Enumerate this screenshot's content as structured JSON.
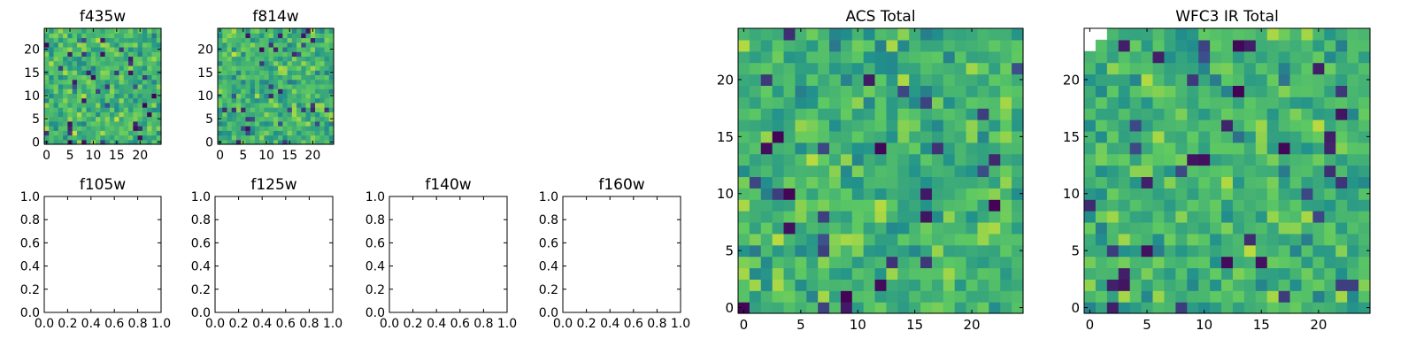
{
  "figure": {
    "colormap": [
      "#440154",
      "#3b528b",
      "#21918c",
      "#5ec962",
      "#fde725"
    ],
    "tick_color": "#000000",
    "nan_color": "#ffffff"
  },
  "chart_data": [
    {
      "type": "heatmap",
      "title": "f435w",
      "grid_size": 25,
      "value_range": [
        0,
        1
      ],
      "xlim": [
        -0.5,
        24.5
      ],
      "ylim": [
        -0.5,
        24.5
      ],
      "x_ticks": [
        0,
        5,
        10,
        15,
        20
      ],
      "y_ticks": [
        0,
        5,
        10,
        15,
        20
      ],
      "noise_seed": 11,
      "xlabel": "",
      "ylabel": ""
    },
    {
      "type": "heatmap",
      "title": "f814w",
      "grid_size": 25,
      "value_range": [
        0,
        1
      ],
      "xlim": [
        -0.5,
        24.5
      ],
      "ylim": [
        -0.5,
        24.5
      ],
      "x_ticks": [
        0,
        5,
        10,
        15,
        20
      ],
      "y_ticks": [
        0,
        5,
        10,
        15,
        20
      ],
      "noise_seed": 23,
      "xlabel": "",
      "ylabel": ""
    },
    {
      "type": "heatmap",
      "title": "f105w",
      "empty": true,
      "xlim": [
        0,
        1
      ],
      "ylim": [
        0,
        1
      ],
      "x_ticks": [
        0.0,
        0.2,
        0.4,
        0.6,
        0.8,
        1.0
      ],
      "x_tick_labels": [
        "0.0",
        "0.2",
        "0.4",
        "0.6",
        "0.8",
        "1.0"
      ],
      "y_ticks": [
        0.0,
        0.2,
        0.4,
        0.6,
        0.8,
        1.0
      ],
      "y_tick_labels": [
        "0.0",
        "0.2",
        "0.4",
        "0.6",
        "0.8",
        "1.0"
      ],
      "xlabel": "",
      "ylabel": ""
    },
    {
      "type": "heatmap",
      "title": "f125w",
      "empty": true,
      "xlim": [
        0,
        1
      ],
      "ylim": [
        0,
        1
      ],
      "x_ticks": [
        0.0,
        0.2,
        0.4,
        0.6,
        0.8,
        1.0
      ],
      "x_tick_labels": [
        "0.0",
        "0.2",
        "0.4",
        "0.6",
        "0.8",
        "1.0"
      ],
      "y_ticks": [
        0.0,
        0.2,
        0.4,
        0.6,
        0.8,
        1.0
      ],
      "y_tick_labels": [
        "0.0",
        "0.2",
        "0.4",
        "0.6",
        "0.8",
        "1.0"
      ],
      "xlabel": "",
      "ylabel": ""
    },
    {
      "type": "heatmap",
      "title": "f140w",
      "empty": true,
      "xlim": [
        0,
        1
      ],
      "ylim": [
        0,
        1
      ],
      "x_ticks": [
        0.0,
        0.2,
        0.4,
        0.6,
        0.8,
        1.0
      ],
      "x_tick_labels": [
        "0.0",
        "0.2",
        "0.4",
        "0.6",
        "0.8",
        "1.0"
      ],
      "y_ticks": [
        0.0,
        0.2,
        0.4,
        0.6,
        0.8,
        1.0
      ],
      "y_tick_labels": [
        "0.0",
        "0.2",
        "0.4",
        "0.6",
        "0.8",
        "1.0"
      ],
      "xlabel": "",
      "ylabel": ""
    },
    {
      "type": "heatmap",
      "title": "f160w",
      "empty": true,
      "xlim": [
        0,
        1
      ],
      "ylim": [
        0,
        1
      ],
      "x_ticks": [
        0.0,
        0.2,
        0.4,
        0.6,
        0.8,
        1.0
      ],
      "x_tick_labels": [
        "0.0",
        "0.2",
        "0.4",
        "0.6",
        "0.8",
        "1.0"
      ],
      "y_ticks": [
        0.0,
        0.2,
        0.4,
        0.6,
        0.8,
        1.0
      ],
      "y_tick_labels": [
        "0.0",
        "0.2",
        "0.4",
        "0.6",
        "0.8",
        "1.0"
      ],
      "xlabel": "",
      "ylabel": ""
    },
    {
      "type": "heatmap",
      "title": "ACS Total",
      "grid_size": 25,
      "value_range": [
        0,
        1
      ],
      "xlim": [
        -0.5,
        24.5
      ],
      "ylim": [
        -0.5,
        24.5
      ],
      "x_ticks": [
        0,
        5,
        10,
        15,
        20
      ],
      "y_ticks": [
        0,
        5,
        10,
        15,
        20
      ],
      "noise_seed": 37,
      "xlabel": "",
      "ylabel": ""
    },
    {
      "type": "heatmap",
      "title": "WFC3 IR Total",
      "grid_size": 25,
      "value_range": [
        0,
        1
      ],
      "xlim": [
        -0.5,
        24.5
      ],
      "ylim": [
        -0.5,
        24.5
      ],
      "x_ticks": [
        0,
        5,
        10,
        15,
        20
      ],
      "y_ticks": [
        0,
        5,
        10,
        15,
        20
      ],
      "noise_seed": 53,
      "missing_cells": [
        [
          0,
          24
        ],
        [
          1,
          24
        ],
        [
          0,
          23
        ]
      ],
      "xlabel": "",
      "ylabel": ""
    }
  ]
}
